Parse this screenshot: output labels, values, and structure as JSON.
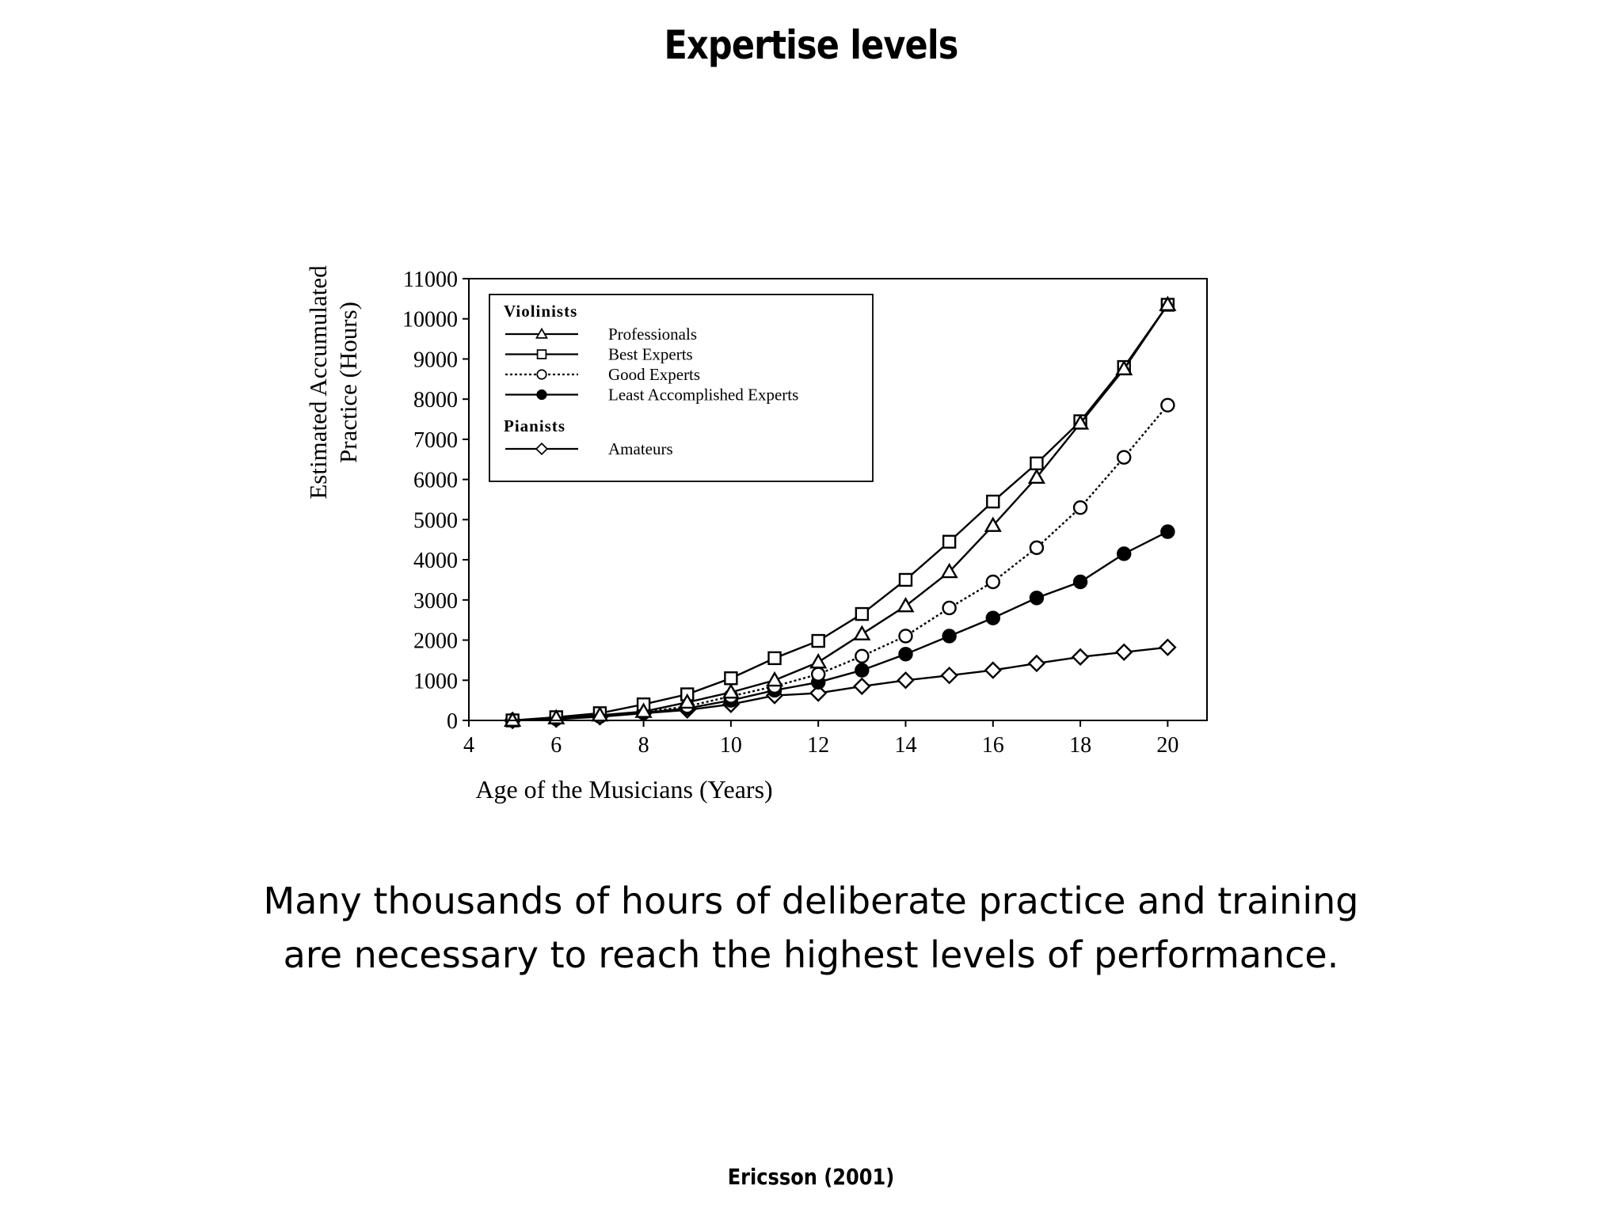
{
  "slide": {
    "title": "Expertise levels",
    "caption_line1": "Many thousands of hours of deliberate practice and training",
    "caption_line2": "are necessary to reach the highest levels of performance.",
    "citation": "Ericsson (2001)"
  },
  "chart_data": {
    "type": "line",
    "title": "",
    "xlabel": "Age of the Musicians (Years)",
    "ylabel_line1": "Estimated Accumulated",
    "ylabel_line2": "Practice (Hours)",
    "xlim": [
      4,
      21
    ],
    "ylim": [
      0,
      11000
    ],
    "xticks": [
      4,
      6,
      8,
      10,
      12,
      14,
      16,
      18,
      20
    ],
    "yticks": [
      0,
      1000,
      2000,
      3000,
      4000,
      5000,
      6000,
      7000,
      8000,
      9000,
      10000,
      11000
    ],
    "grid": false,
    "legend_position": "top-left",
    "legend_groups": [
      {
        "heading": "Violinists",
        "series": [
          0,
          1,
          2,
          3
        ]
      },
      {
        "heading": "Pianists",
        "series": [
          4
        ]
      }
    ],
    "series": [
      {
        "name": "Professionals",
        "marker": "triangle-open",
        "line": "solid",
        "x": [
          5,
          6,
          7,
          8,
          9,
          10,
          11,
          12,
          13,
          14,
          15,
          16,
          17,
          18,
          19,
          20
        ],
        "y": [
          0,
          60,
          130,
          220,
          450,
          700,
          1000,
          1450,
          2150,
          2850,
          3700,
          4850,
          6050,
          7400,
          8750,
          10350
        ]
      },
      {
        "name": "Best Experts",
        "marker": "square-open",
        "line": "solid",
        "x": [
          5,
          6,
          7,
          8,
          9,
          10,
          11,
          12,
          13,
          14,
          15,
          16,
          17,
          18,
          19,
          20
        ],
        "y": [
          0,
          80,
          180,
          400,
          650,
          1050,
          1550,
          1980,
          2650,
          3500,
          4450,
          5450,
          6400,
          7450,
          8800,
          10350
        ]
      },
      {
        "name": "Good Experts",
        "marker": "circle-open",
        "line": "dotted",
        "x": [
          5,
          6,
          7,
          8,
          9,
          10,
          11,
          12,
          13,
          14,
          15,
          16,
          17,
          18,
          19,
          20
        ],
        "y": [
          0,
          50,
          100,
          200,
          350,
          600,
          850,
          1150,
          1600,
          2100,
          2800,
          3450,
          4300,
          5300,
          6550,
          7850
        ]
      },
      {
        "name": "Least Accomplished Experts",
        "marker": "circle-filled",
        "line": "solid",
        "x": [
          5,
          6,
          7,
          8,
          9,
          10,
          11,
          12,
          13,
          14,
          15,
          16,
          17,
          18,
          19,
          20
        ],
        "y": [
          0,
          40,
          100,
          190,
          300,
          500,
          750,
          950,
          1250,
          1650,
          2100,
          2550,
          3050,
          3450,
          4150,
          4700
        ]
      },
      {
        "name": "Amateurs",
        "marker": "diamond-open",
        "line": "solid",
        "x": [
          5,
          6,
          7,
          8,
          9,
          10,
          11,
          12,
          13,
          14,
          15,
          16,
          17,
          18,
          19,
          20
        ],
        "y": [
          0,
          30,
          90,
          180,
          260,
          400,
          620,
          680,
          850,
          1000,
          1120,
          1250,
          1420,
          1580,
          1700,
          1820
        ]
      }
    ]
  }
}
